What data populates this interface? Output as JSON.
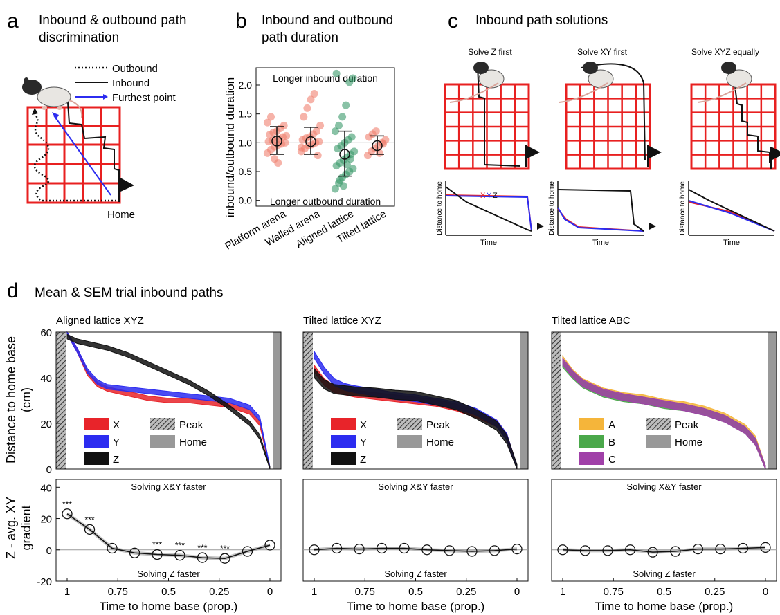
{
  "panel_a": {
    "letter": "a",
    "title": "Inbound & outbound path discrimination",
    "title_lines": [
      "Inbound & outbound path",
      "discrimination"
    ],
    "legend": {
      "outbound": "Outbound",
      "inbound": "Inbound",
      "furthest": "Furthest point"
    },
    "home_label": "Home"
  },
  "panel_b": {
    "letter": "b",
    "title_lines": [
      "Inbound and outbound",
      "path duration"
    ]
  },
  "panel_c": {
    "letter": "c",
    "title": "Inbound path solutions",
    "subtitles": [
      "Solve Z first",
      "Solve XY first",
      "Solve XYZ equally"
    ],
    "mini_ylabel": "Distance to home",
    "mini_xlabel": "Time",
    "xyz_tags": [
      "X",
      "Y",
      "Z"
    ]
  },
  "panel_d": {
    "letter": "d",
    "title": "Mean & SEM trial inbound paths",
    "shared_ylabel_top_lines": [
      "Distance to home base",
      "(cm)"
    ],
    "shared_ylabel_bottom_lines": [
      "Z - avg. XY",
      "gradient"
    ],
    "xlabel": "Time to home base (prop.)",
    "annot_top": "Solving X&Y faster",
    "annot_bottom": "Solving Z faster",
    "subplot_titles": [
      "Aligned lattice XYZ",
      "Tilted lattice XYZ",
      "Tilted lattice ABC"
    ],
    "legend_peak": "Peak",
    "legend_home": "Home"
  },
  "colors": {
    "red": "#e8242a",
    "blue": "#2c2cf0",
    "black": "#111111",
    "orange": "#f5b53a",
    "green": "#4aa84a",
    "purple": "#a040a8",
    "salmon": "#f08070",
    "teal": "#3a9a6a",
    "lattice_red": "#e82020",
    "grey_bar": "#999999"
  },
  "chart_data": [
    {
      "id": "b",
      "type": "scatter",
      "ylabel": "inbound/outbound duration",
      "categories": [
        "Platform arena",
        "Walled arena",
        "Aligned lattice",
        "Tilted lattice"
      ],
      "ylim": [
        -0.1,
        2.3
      ],
      "yticks": [
        0.0,
        0.5,
        1.0,
        1.5,
        2.0
      ],
      "ytick_labels": [
        "0.0",
        "0.5",
        "1.0",
        "1.5",
        "2.0"
      ],
      "reference_line": 1.0,
      "annot_top": "Longer inbound duration",
      "annot_bottom": "Longer outbound duration",
      "means": [
        1.03,
        1.02,
        0.8,
        0.95
      ],
      "error_low": [
        0.8,
        0.8,
        0.42,
        0.8
      ],
      "error_high": [
        1.28,
        1.27,
        1.2,
        1.12
      ],
      "points": [
        [
          0.82,
          0.88,
          0.93,
          0.96,
          0.98,
          1.0,
          1.02,
          1.04,
          1.05,
          1.07,
          1.1,
          1.12,
          1.14,
          1.18,
          1.2,
          1.25,
          1.3,
          1.35,
          1.45,
          0.72,
          0.65
        ],
        [
          0.85,
          0.9,
          0.95,
          0.97,
          1.0,
          1.02,
          1.05,
          1.08,
          1.1,
          1.15,
          1.2,
          1.3,
          1.45,
          1.6,
          1.75,
          1.85,
          0.78,
          0.92
        ],
        [
          0.2,
          0.3,
          0.4,
          0.45,
          0.5,
          0.55,
          0.6,
          0.65,
          0.7,
          0.75,
          0.8,
          0.85,
          0.9,
          0.95,
          1.0,
          1.05,
          1.1,
          1.2,
          1.3,
          1.45,
          1.65,
          2.05,
          2.12,
          2.2,
          0.35,
          0.25,
          0.62,
          0.72
        ],
        [
          0.78,
          0.85,
          0.9,
          0.95,
          1.0,
          1.05,
          1.1,
          1.15,
          1.2,
          0.82,
          0.98
        ]
      ]
    },
    {
      "id": "d-top-1",
      "type": "area",
      "title": "Aligned lattice XYZ",
      "ylim": [
        0,
        60
      ],
      "yticks": [
        0,
        20,
        40,
        60
      ],
      "x_ticks": [
        1,
        0.75,
        0.5,
        0.25,
        0
      ],
      "series": [
        {
          "name": "X",
          "x": [
            1,
            0.95,
            0.9,
            0.85,
            0.8,
            0.75,
            0.7,
            0.6,
            0.5,
            0.4,
            0.3,
            0.2,
            0.1,
            0.05,
            0
          ],
          "y": [
            60,
            52,
            42,
            37,
            35,
            34,
            33,
            31,
            30,
            30,
            29,
            28,
            25,
            20,
            0
          ],
          "sem": 1
        },
        {
          "name": "Y",
          "x": [
            1,
            0.95,
            0.9,
            0.85,
            0.8,
            0.75,
            0.7,
            0.6,
            0.5,
            0.4,
            0.3,
            0.2,
            0.1,
            0.05,
            0
          ],
          "y": [
            60,
            52,
            43,
            38,
            36,
            35.5,
            35,
            34,
            33,
            32,
            31,
            30,
            27,
            22,
            0
          ],
          "sem": 1
        },
        {
          "name": "Z",
          "x": [
            1,
            0.95,
            0.9,
            0.85,
            0.8,
            0.7,
            0.6,
            0.5,
            0.4,
            0.3,
            0.2,
            0.1,
            0.05,
            0
          ],
          "y": [
            58,
            56,
            55,
            54,
            53,
            50,
            46,
            42,
            38,
            33,
            27,
            20,
            14,
            0
          ],
          "sem": 1
        }
      ]
    },
    {
      "id": "d-top-2",
      "type": "area",
      "title": "Tilted lattice XYZ",
      "ylim": [
        0,
        60
      ],
      "x_ticks": [
        1,
        0.75,
        0.5,
        0.25,
        0
      ],
      "series": [
        {
          "name": "X",
          "x": [
            1,
            0.95,
            0.9,
            0.85,
            0.8,
            0.7,
            0.6,
            0.5,
            0.4,
            0.3,
            0.2,
            0.1,
            0.05,
            0
          ],
          "y": [
            44,
            38,
            35,
            34,
            33,
            32,
            31,
            30,
            29,
            27,
            24,
            20,
            14,
            0
          ],
          "sem": 1.5
        },
        {
          "name": "Y",
          "x": [
            1,
            0.95,
            0.9,
            0.85,
            0.8,
            0.7,
            0.6,
            0.5,
            0.4,
            0.3,
            0.2,
            0.1,
            0.05,
            0
          ],
          "y": [
            50,
            43,
            38,
            36,
            35,
            33.5,
            32,
            31,
            29.5,
            28,
            25,
            20,
            14,
            0
          ],
          "sem": 1.5
        },
        {
          "name": "Z",
          "x": [
            1,
            0.95,
            0.9,
            0.85,
            0.8,
            0.7,
            0.6,
            0.5,
            0.4,
            0.3,
            0.2,
            0.1,
            0.05,
            0
          ],
          "y": [
            42,
            37,
            35,
            34.5,
            34,
            33.5,
            32.5,
            32,
            30,
            28,
            24,
            19,
            13,
            0
          ],
          "sem": 2
        }
      ]
    },
    {
      "id": "d-top-3",
      "type": "area",
      "title": "Tilted lattice ABC",
      "ylim": [
        0,
        60
      ],
      "x_ticks": [
        1,
        0.75,
        0.5,
        0.25,
        0
      ],
      "series": [
        {
          "name": "A",
          "x": [
            1,
            0.95,
            0.9,
            0.85,
            0.8,
            0.7,
            0.6,
            0.5,
            0.4,
            0.3,
            0.2,
            0.1,
            0.05,
            0
          ],
          "y": [
            48,
            42,
            38,
            36,
            34,
            32,
            31,
            29,
            28,
            26,
            23,
            18,
            13,
            0
          ],
          "sem": 1.5
        },
        {
          "name": "B",
          "x": [
            1,
            0.95,
            0.9,
            0.85,
            0.8,
            0.7,
            0.6,
            0.5,
            0.4,
            0.3,
            0.2,
            0.1,
            0.05,
            0
          ],
          "y": [
            46,
            41,
            37,
            35,
            33,
            31,
            30,
            28,
            27,
            25,
            22,
            17,
            12,
            0
          ],
          "sem": 1.5
        },
        {
          "name": "C",
          "x": [
            1,
            0.95,
            0.9,
            0.85,
            0.8,
            0.7,
            0.6,
            0.5,
            0.4,
            0.3,
            0.2,
            0.1,
            0.05,
            0
          ],
          "y": [
            47,
            41.5,
            37.5,
            35.5,
            33.5,
            31.5,
            30,
            28.5,
            27,
            25,
            22,
            17,
            12,
            0
          ],
          "sem": 1.5
        }
      ]
    },
    {
      "id": "d-bottom-1",
      "type": "line",
      "ylim": [
        -20,
        45
      ],
      "yticks": [
        -20,
        0,
        20,
        40
      ],
      "x_ticks": [
        1,
        0.75,
        0.5,
        0.25,
        0
      ],
      "x": [
        1,
        0.889,
        0.778,
        0.667,
        0.556,
        0.444,
        0.333,
        0.222,
        0.111,
        0
      ],
      "y": [
        23,
        13,
        1,
        -2,
        -3,
        -3.5,
        -5,
        -5.5,
        -1,
        3
      ],
      "significance": [
        "***",
        "***",
        "",
        "",
        "***",
        "***",
        "***",
        "***",
        "",
        ""
      ]
    },
    {
      "id": "d-bottom-2",
      "type": "line",
      "ylim": [
        -20,
        45
      ],
      "x_ticks": [
        1,
        0.75,
        0.5,
        0.25,
        0
      ],
      "x": [
        1,
        0.889,
        0.778,
        0.667,
        0.556,
        0.444,
        0.333,
        0.222,
        0.111,
        0
      ],
      "y": [
        0,
        1,
        0.5,
        1,
        1,
        0,
        -0.5,
        -1,
        -0.5,
        0.5
      ]
    },
    {
      "id": "d-bottom-3",
      "type": "line",
      "ylim": [
        -20,
        45
      ],
      "x_ticks": [
        1,
        0.75,
        0.5,
        0.25,
        0
      ],
      "x": [
        1,
        0.889,
        0.778,
        0.667,
        0.556,
        0.444,
        0.333,
        0.222,
        0.111,
        0
      ],
      "y": [
        0,
        -0.5,
        -0.5,
        0,
        -1.5,
        -1,
        0.5,
        0.5,
        1,
        1.5
      ]
    }
  ]
}
